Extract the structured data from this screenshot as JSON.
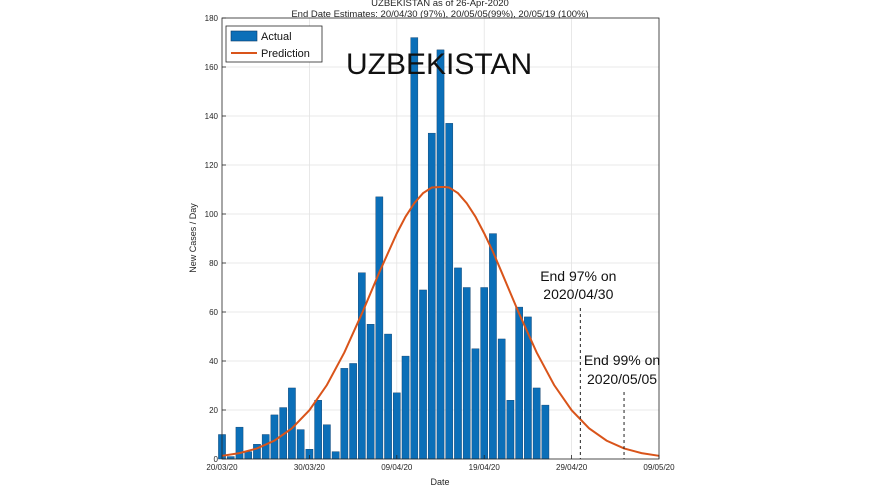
{
  "chart_data": {
    "type": "bar",
    "title": "UZBEKISTAN as of 26-Apr-2020",
    "subtitle": "End Date Estimates: 20/04/30 (97%), 20/05/05(99%), 20/05/19 (100%)",
    "overlay_title": "UZBEKISTAN",
    "xlabel": "Date",
    "ylabel": "New Cases / Day",
    "ylim": [
      0,
      180
    ],
    "y_ticks": [
      "0",
      "20",
      "40",
      "60",
      "80",
      "100",
      "120",
      "140",
      "160",
      "180"
    ],
    "x_range_days": [
      0,
      50
    ],
    "x_ticks": [
      {
        "day": 0,
        "label": "20/03/20"
      },
      {
        "day": 10,
        "label": "30/03/20"
      },
      {
        "day": 20,
        "label": "09/04/20"
      },
      {
        "day": 30,
        "label": "19/04/20"
      },
      {
        "day": 40,
        "label": "29/04/20"
      },
      {
        "day": 50,
        "label": "09/05/20"
      }
    ],
    "grid": true,
    "legend_position": "top-left",
    "series": [
      {
        "name": "Actual",
        "kind": "bar",
        "color": "#0b6fb8",
        "x_days": [
          0,
          1,
          2,
          3,
          4,
          5,
          6,
          7,
          8,
          9,
          10,
          11,
          12,
          13,
          14,
          15,
          16,
          17,
          18,
          19,
          20,
          21,
          22,
          23,
          24,
          25,
          26,
          27,
          28,
          29,
          30,
          31,
          32,
          33,
          34,
          35,
          36,
          37
        ],
        "values": [
          10,
          1,
          13,
          3,
          6,
          10,
          18,
          21,
          29,
          12,
          4,
          24,
          14,
          3,
          37,
          39,
          76,
          55,
          107,
          51,
          27,
          42,
          172,
          69,
          133,
          167,
          137,
          78,
          70,
          45,
          70,
          92,
          49,
          24,
          62,
          58,
          29,
          22
        ]
      },
      {
        "name": "Prediction",
        "kind": "line",
        "color": "#d9541a",
        "peak_day": 25.5,
        "peak_value": 111,
        "x_days": [
          0,
          2,
          4,
          6,
          8,
          10,
          12,
          14,
          16,
          18,
          20,
          21,
          22,
          23,
          24,
          25,
          25.5,
          26,
          27,
          28,
          29,
          30,
          31,
          32,
          34,
          36,
          38,
          40,
          42,
          44,
          46,
          48,
          50
        ],
        "values": [
          1.3,
          2.4,
          4.3,
          7.5,
          12.5,
          19.9,
          30.2,
          43.5,
          59.3,
          76.2,
          92.1,
          98.9,
          104.4,
          108.5,
          110.8,
          111,
          111,
          110.8,
          108.5,
          104.4,
          98.9,
          92.1,
          84.6,
          76.2,
          59.3,
          43.5,
          30.2,
          19.9,
          12.5,
          7.5,
          4.3,
          2.4,
          1.3
        ]
      }
    ],
    "annotations": [
      {
        "day": 41,
        "line1": "End 97% on",
        "line2": "2020/04/30"
      },
      {
        "day": 46,
        "line1": "End 99% on",
        "line2": "2020/05/05"
      }
    ]
  }
}
